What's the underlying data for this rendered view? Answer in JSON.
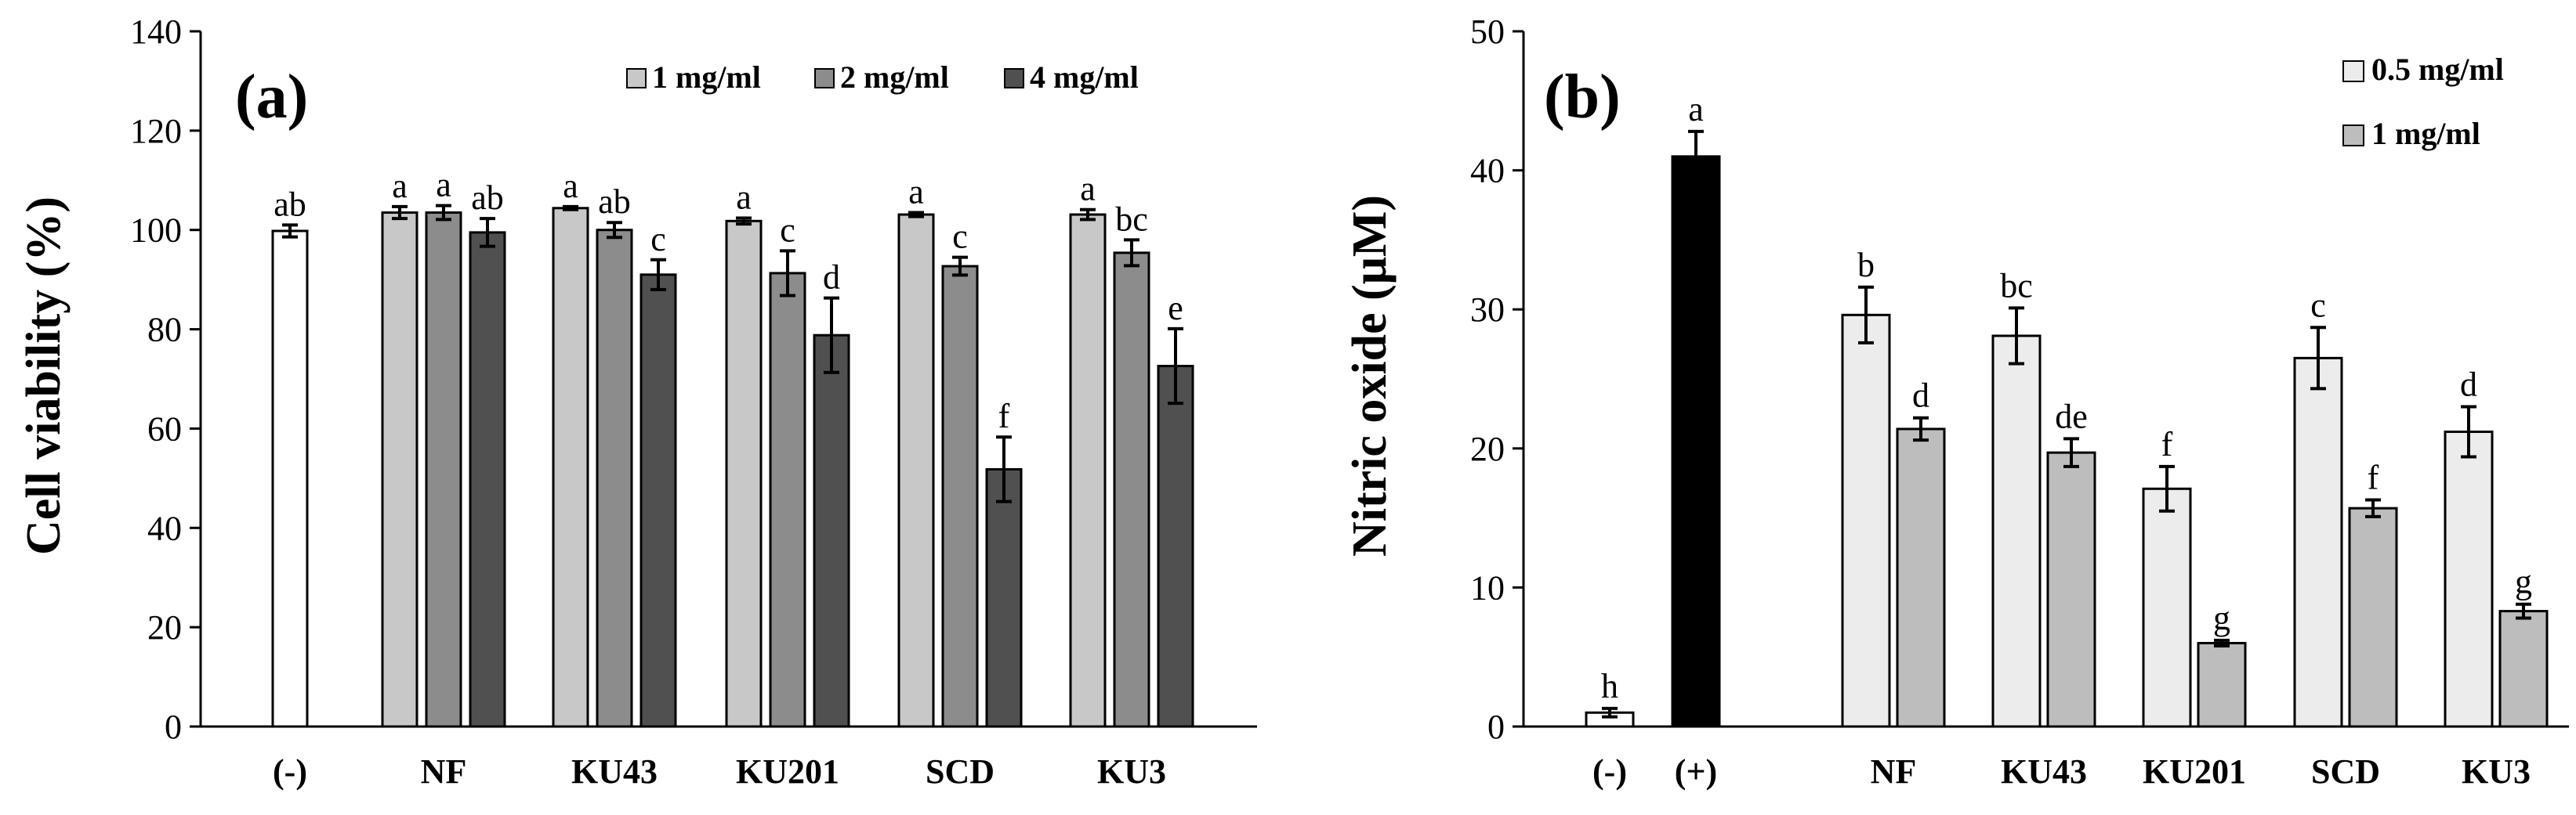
{
  "chart_data": [
    {
      "type": "bar",
      "panel_label": "(a)",
      "ylabel": "Cell viability (%)",
      "xlabel": "",
      "ylim": [
        0,
        140
      ],
      "yticks": [
        0,
        20,
        40,
        60,
        80,
        100,
        120,
        140
      ],
      "categories": [
        "(-)",
        "NF",
        "KU43",
        "KU201",
        "SCD",
        "KU3"
      ],
      "control": {
        "category": "(-)",
        "value": 99.8,
        "error": 1.2,
        "letter": "ab",
        "color": "#ffffff"
      },
      "series": [
        {
          "name": "1 mg/ml",
          "color": "#c8c8c8",
          "values": [
            null,
            103.5,
            104.4,
            101.8,
            103.1,
            103.1
          ],
          "errors": [
            null,
            1.2,
            0.3,
            0.6,
            0.4,
            1.0
          ],
          "letters": [
            null,
            "a",
            "a",
            "a",
            "a",
            "a"
          ]
        },
        {
          "name": "2 mg/ml",
          "color": "#8c8c8c",
          "values": [
            null,
            103.5,
            100.0,
            91.3,
            92.7,
            95.4
          ],
          "errors": [
            null,
            1.4,
            1.5,
            4.5,
            1.8,
            2.6
          ],
          "letters": [
            null,
            "a",
            "ab",
            "c",
            "c",
            "bc"
          ]
        },
        {
          "name": "4 mg/ml",
          "color": "#505050",
          "values": [
            null,
            99.5,
            91.0,
            78.8,
            51.8,
            72.6
          ],
          "errors": [
            null,
            2.8,
            3.0,
            7.5,
            6.5,
            7.5
          ],
          "letters": [
            null,
            "ab",
            "c",
            "d",
            "f",
            "e"
          ]
        }
      ],
      "legend_position": "top-right"
    },
    {
      "type": "bar",
      "panel_label": "(b)",
      "ylabel": "Nitric oxide (μM)",
      "xlabel": "",
      "ylim": [
        0,
        50
      ],
      "yticks": [
        0,
        10,
        20,
        30,
        40,
        50
      ],
      "categories": [
        "(-)",
        "(+)",
        "NF",
        "KU43",
        "KU201",
        "SCD",
        "KU3"
      ],
      "controls": [
        {
          "category": "(-)",
          "value": 1.0,
          "error": 0.3,
          "letter": "h",
          "color": "#ffffff"
        },
        {
          "category": "(+)",
          "value": 41.0,
          "error": 1.8,
          "letter": "a",
          "color": "#000000"
        }
      ],
      "series": [
        {
          "name": "0.5 mg/ml",
          "color": "#ececec",
          "values": [
            null,
            null,
            29.6,
            28.1,
            17.1,
            26.5,
            21.2
          ],
          "errors": [
            null,
            null,
            2.0,
            2.0,
            1.6,
            2.2,
            1.8
          ],
          "letters": [
            null,
            null,
            "b",
            "bc",
            "f",
            "c",
            "d"
          ]
        },
        {
          "name": "1 mg/ml",
          "color": "#bdbdbd",
          "values": [
            null,
            null,
            21.4,
            19.7,
            6.0,
            15.7,
            8.3
          ],
          "errors": [
            null,
            null,
            0.8,
            1.0,
            0.2,
            0.6,
            0.5
          ],
          "letters": [
            null,
            null,
            "d",
            "de",
            "g",
            "f",
            "g"
          ]
        }
      ],
      "legend_position": "top-right"
    }
  ]
}
